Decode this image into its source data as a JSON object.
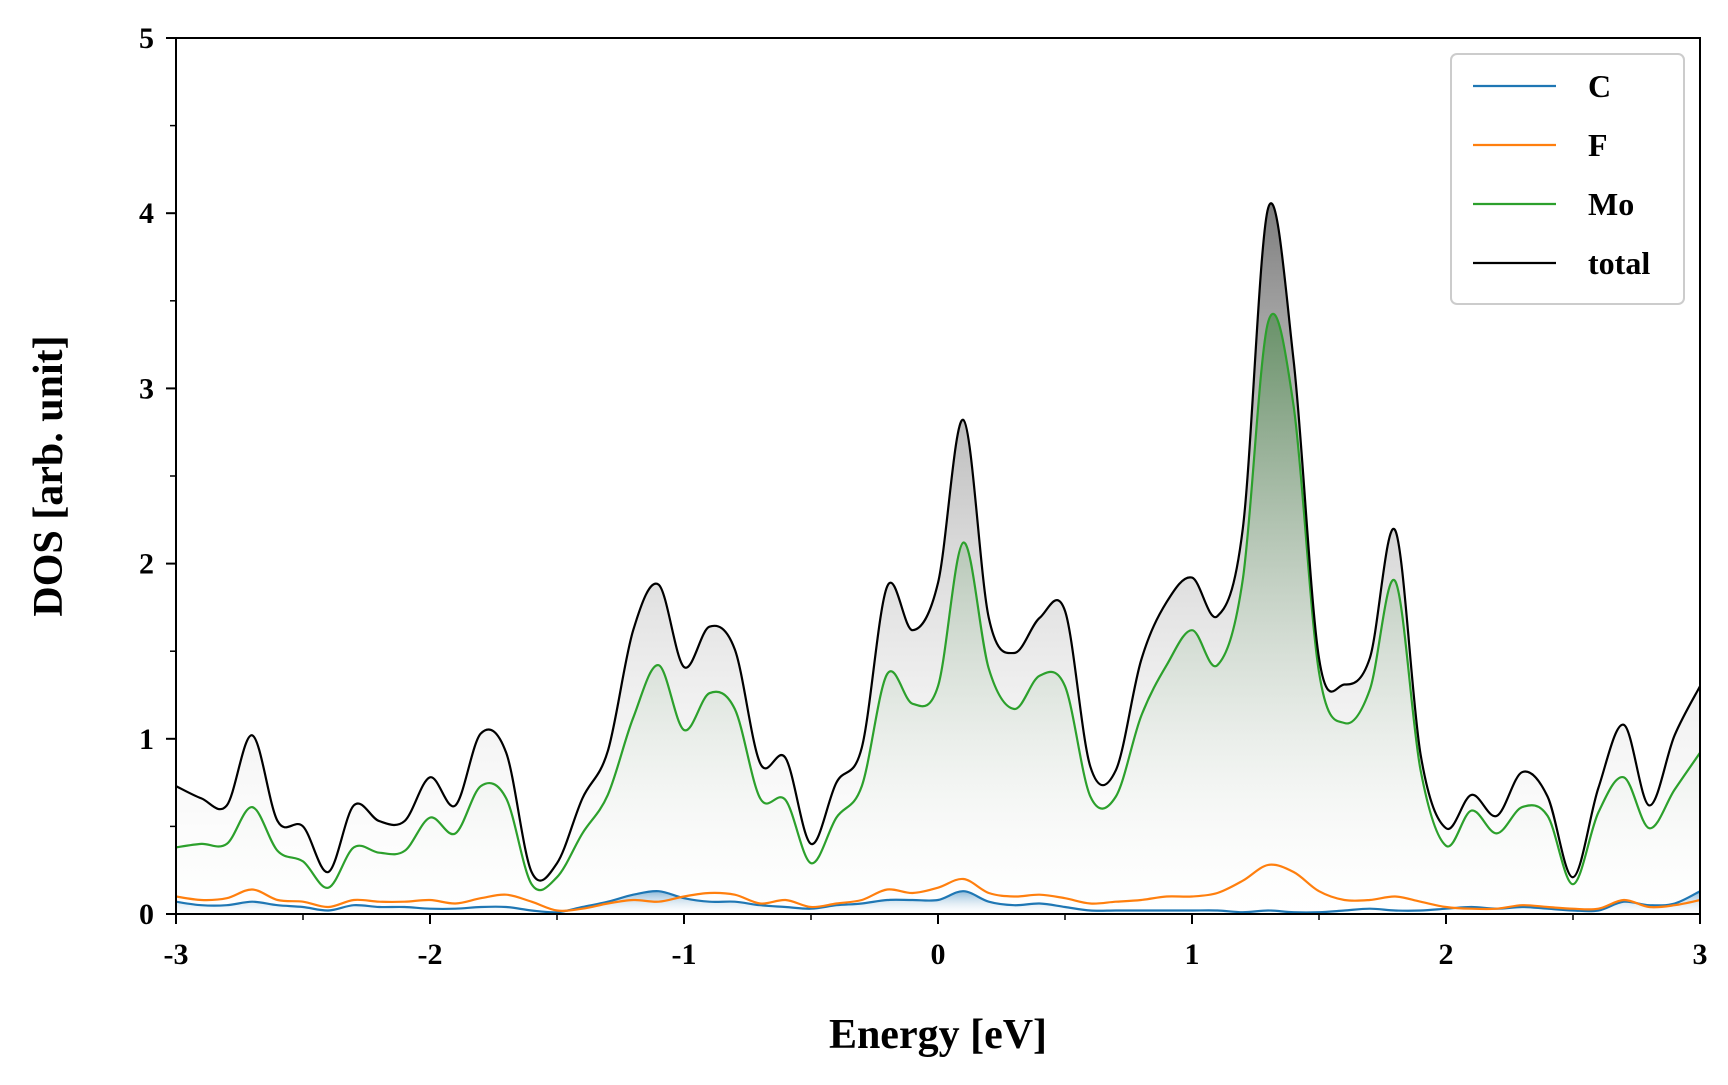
{
  "chart_data": {
    "type": "line",
    "title": "",
    "xlabel": "Energy [eV]",
    "ylabel": "DOS [arb. unit]",
    "xlim": [
      -3,
      3
    ],
    "ylim": [
      0,
      5
    ],
    "xticks": [
      -3,
      -2,
      -1,
      0,
      1,
      2,
      3
    ],
    "xtick_labels": [
      "-3",
      "-2",
      "-1",
      "0",
      "1",
      "2",
      "3"
    ],
    "yticks": [
      0,
      1,
      2,
      3,
      4,
      5
    ],
    "ytick_labels": [
      "0",
      "1",
      "2",
      "3",
      "4",
      "5"
    ],
    "grid": false,
    "legend": {
      "position": "top-right",
      "entries": [
        "C",
        "F",
        "Mo",
        "total"
      ]
    },
    "colors": {
      "C": "#1f77b4",
      "F": "#ff7f0e",
      "Mo": "#2ca02c",
      "total": "#000000"
    },
    "x": [
      -3.0,
      -2.9,
      -2.8,
      -2.7,
      -2.6,
      -2.5,
      -2.4,
      -2.3,
      -2.2,
      -2.1,
      -2.0,
      -1.9,
      -1.8,
      -1.7,
      -1.6,
      -1.5,
      -1.4,
      -1.3,
      -1.2,
      -1.1,
      -1.0,
      -0.9,
      -0.8,
      -0.7,
      -0.6,
      -0.5,
      -0.4,
      -0.3,
      -0.2,
      -0.1,
      0.0,
      0.1,
      0.2,
      0.3,
      0.4,
      0.5,
      0.6,
      0.7,
      0.8,
      0.9,
      1.0,
      1.1,
      1.2,
      1.3,
      1.4,
      1.5,
      1.6,
      1.7,
      1.8,
      1.9,
      2.0,
      2.1,
      2.2,
      2.3,
      2.4,
      2.5,
      2.6,
      2.7,
      2.8,
      2.9,
      3.0
    ],
    "series": [
      {
        "name": "C",
        "values": [
          0.07,
          0.05,
          0.05,
          0.07,
          0.05,
          0.04,
          0.02,
          0.05,
          0.04,
          0.04,
          0.03,
          0.03,
          0.04,
          0.04,
          0.02,
          0.01,
          0.04,
          0.07,
          0.11,
          0.13,
          0.09,
          0.07,
          0.07,
          0.05,
          0.04,
          0.03,
          0.05,
          0.06,
          0.08,
          0.08,
          0.08,
          0.13,
          0.07,
          0.05,
          0.06,
          0.04,
          0.02,
          0.02,
          0.02,
          0.02,
          0.02,
          0.02,
          0.01,
          0.02,
          0.01,
          0.01,
          0.02,
          0.03,
          0.02,
          0.02,
          0.03,
          0.04,
          0.03,
          0.04,
          0.03,
          0.02,
          0.02,
          0.07,
          0.05,
          0.06,
          0.13
        ]
      },
      {
        "name": "F",
        "values": [
          0.1,
          0.08,
          0.09,
          0.14,
          0.08,
          0.07,
          0.04,
          0.08,
          0.07,
          0.07,
          0.08,
          0.06,
          0.09,
          0.11,
          0.07,
          0.02,
          0.03,
          0.06,
          0.08,
          0.07,
          0.1,
          0.12,
          0.11,
          0.06,
          0.08,
          0.04,
          0.06,
          0.08,
          0.14,
          0.12,
          0.15,
          0.2,
          0.12,
          0.1,
          0.11,
          0.09,
          0.06,
          0.07,
          0.08,
          0.1,
          0.1,
          0.12,
          0.19,
          0.28,
          0.24,
          0.13,
          0.08,
          0.08,
          0.1,
          0.07,
          0.04,
          0.03,
          0.03,
          0.05,
          0.04,
          0.03,
          0.03,
          0.08,
          0.04,
          0.05,
          0.08
        ]
      },
      {
        "name": "Mo",
        "values": [
          0.38,
          0.4,
          0.4,
          0.61,
          0.36,
          0.3,
          0.15,
          0.38,
          0.35,
          0.36,
          0.55,
          0.46,
          0.73,
          0.66,
          0.17,
          0.21,
          0.46,
          0.68,
          1.12,
          1.42,
          1.05,
          1.26,
          1.17,
          0.66,
          0.65,
          0.29,
          0.55,
          0.73,
          1.37,
          1.2,
          1.3,
          2.12,
          1.4,
          1.17,
          1.36,
          1.3,
          0.67,
          0.67,
          1.13,
          1.42,
          1.62,
          1.42,
          1.91,
          3.38,
          2.9,
          1.38,
          1.09,
          1.28,
          1.9,
          0.82,
          0.39,
          0.59,
          0.46,
          0.61,
          0.56,
          0.17,
          0.58,
          0.78,
          0.49,
          0.71,
          0.92
        ]
      },
      {
        "name": "total",
        "values": [
          0.73,
          0.66,
          0.62,
          1.02,
          0.53,
          0.5,
          0.24,
          0.62,
          0.53,
          0.53,
          0.78,
          0.62,
          1.03,
          0.92,
          0.24,
          0.29,
          0.66,
          0.93,
          1.62,
          1.88,
          1.41,
          1.64,
          1.51,
          0.86,
          0.89,
          0.4,
          0.75,
          0.95,
          1.87,
          1.62,
          1.89,
          2.82,
          1.69,
          1.49,
          1.69,
          1.73,
          0.84,
          0.82,
          1.45,
          1.78,
          1.92,
          1.7,
          2.2,
          4.03,
          3.16,
          1.46,
          1.31,
          1.46,
          2.19,
          0.91,
          0.49,
          0.68,
          0.56,
          0.81,
          0.67,
          0.21,
          0.72,
          1.08,
          0.62,
          1.02,
          1.3
        ]
      }
    ]
  }
}
